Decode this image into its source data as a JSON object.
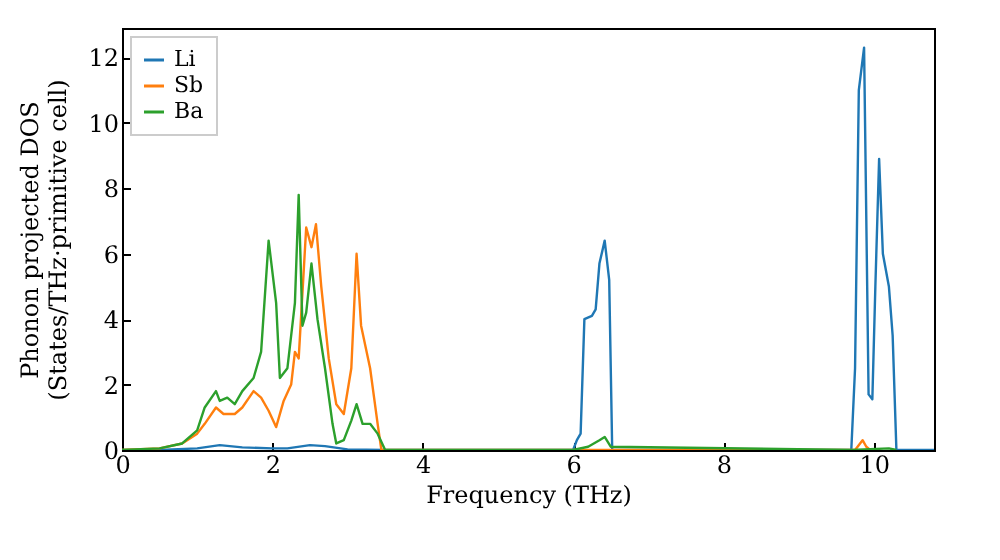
{
  "chart_data": {
    "type": "line",
    "xlabel": "Frequency (THz)",
    "ylabel": "Phonon projected DOS\n(States/THz·primitive cell)",
    "xlim": [
      0,
      10.8
    ],
    "xticks": [
      0,
      2,
      4,
      6,
      8,
      10
    ],
    "ylim": [
      0,
      12.9
    ],
    "yticks": [
      0,
      2,
      4,
      6,
      8,
      10,
      12
    ],
    "grid": false,
    "legend": "top left",
    "marker": "none",
    "line_style": "solid",
    "series": [
      {
        "name": "Li",
        "color": "#1f77b4",
        "x": [
          0,
          0.5,
          1,
          1.3,
          1.6,
          2,
          2.2,
          2.5,
          2.7,
          3,
          3.5,
          6.0,
          6.05,
          6.1,
          6.15,
          6.25,
          6.3,
          6.35,
          6.42,
          6.48,
          6.52,
          9.7,
          9.75,
          9.8,
          9.87,
          9.93,
          9.98,
          10.02,
          10.07,
          10.12,
          10.2,
          10.25,
          10.3,
          10.8
        ],
        "values": [
          0,
          0,
          0.05,
          0.15,
          0.08,
          0.05,
          0.05,
          0.15,
          0.12,
          0.02,
          0,
          0,
          0.3,
          0.5,
          4.0,
          4.1,
          4.3,
          5.7,
          6.4,
          5.2,
          0,
          0,
          2.5,
          11.0,
          12.3,
          1.7,
          1.55,
          5,
          8.9,
          6,
          5.0,
          3.5,
          0,
          0
        ]
      },
      {
        "name": "Sb",
        "color": "#ff7f0e",
        "x": [
          0,
          0.5,
          0.8,
          1.0,
          1.1,
          1.25,
          1.35,
          1.5,
          1.6,
          1.75,
          1.85,
          1.95,
          2.05,
          2.15,
          2.25,
          2.3,
          2.35,
          2.45,
          2.52,
          2.58,
          2.65,
          2.75,
          2.85,
          2.95,
          3.05,
          3.12,
          3.18,
          3.3,
          3.4,
          3.45,
          9.75,
          9.85,
          9.9,
          9.95
        ],
        "values": [
          0,
          0.05,
          0.2,
          0.5,
          0.8,
          1.3,
          1.1,
          1.1,
          1.3,
          1.8,
          1.6,
          1.2,
          0.7,
          1.5,
          2.0,
          3.0,
          2.8,
          6.8,
          6.2,
          6.9,
          5.0,
          2.8,
          1.4,
          1.1,
          2.5,
          6.0,
          3.8,
          2.5,
          0.8,
          0,
          0,
          0.3,
          0.1,
          0
        ]
      },
      {
        "name": "Ba",
        "color": "#2ca02c",
        "x": [
          0,
          0.5,
          0.8,
          1.0,
          1.1,
          1.25,
          1.3,
          1.4,
          1.5,
          1.6,
          1.75,
          1.85,
          1.95,
          2.05,
          2.1,
          2.2,
          2.3,
          2.35,
          2.4,
          2.45,
          2.52,
          2.6,
          2.7,
          2.8,
          2.85,
          2.95,
          3.05,
          3.12,
          3.2,
          3.3,
          3.4,
          3.5,
          6.0,
          6.2,
          6.35,
          6.42,
          6.5,
          9.7,
          10.2,
          10.3
        ],
        "values": [
          0,
          0.05,
          0.2,
          0.6,
          1.3,
          1.8,
          1.5,
          1.6,
          1.4,
          1.8,
          2.2,
          3.0,
          6.4,
          4.5,
          2.2,
          2.5,
          4.5,
          7.8,
          3.8,
          4.2,
          5.7,
          4.0,
          2.5,
          0.8,
          0.2,
          0.3,
          0.9,
          1.4,
          0.8,
          0.8,
          0.5,
          0,
          0,
          0.1,
          0.3,
          0.4,
          0.1,
          0,
          0.05,
          0
        ]
      }
    ]
  }
}
